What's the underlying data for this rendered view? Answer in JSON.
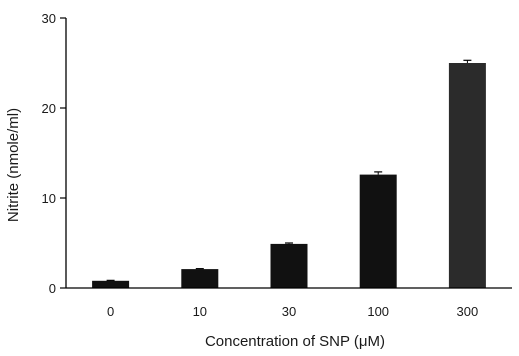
{
  "chart_data": {
    "type": "bar",
    "title": "",
    "xlabel": "Concentration of SNP (μM)",
    "ylabel": "Nitrite (nmole/ml)",
    "categories": [
      "0",
      "10",
      "30",
      "100",
      "300"
    ],
    "values": [
      0.8,
      2.1,
      4.9,
      12.6,
      25.0
    ],
    "errors": [
      0.05,
      0.05,
      0.1,
      0.3,
      0.3
    ],
    "ylim": [
      0,
      30
    ],
    "yticks": [
      0,
      10,
      20,
      30
    ],
    "grid": false,
    "bar_color": "#111111",
    "last_bar_color": "#2b2b2b"
  }
}
